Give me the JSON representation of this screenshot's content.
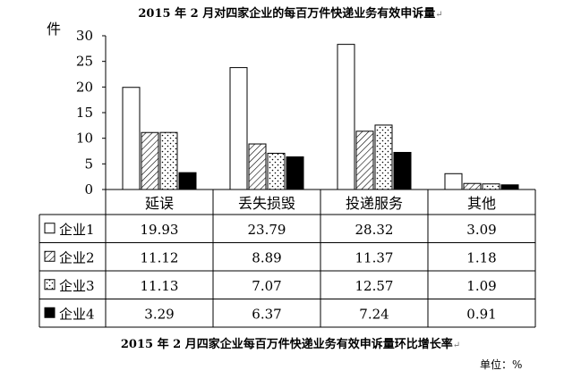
{
  "chart_data": {
    "type": "bar",
    "title": "2015 年 2 月对四家企业的每百万件快递业务有效申诉量",
    "ylabel": "件",
    "ylim": [
      0,
      30
    ],
    "yticks": [
      0,
      5,
      10,
      15,
      20,
      25,
      30
    ],
    "grid": false,
    "categories": [
      "延误",
      "丢失损毁",
      "投递服务",
      "其他"
    ],
    "series": [
      {
        "name": "企业1",
        "fill": "white",
        "values": [
          19.93,
          23.79,
          28.32,
          3.09
        ]
      },
      {
        "name": "企业2",
        "fill": "diagonal-hatch",
        "values": [
          11.12,
          8.89,
          11.37,
          1.18
        ]
      },
      {
        "name": "企业3",
        "fill": "dotted",
        "values": [
          11.13,
          7.07,
          12.57,
          1.09
        ]
      },
      {
        "name": "企业4",
        "fill": "black",
        "values": [
          3.29,
          6.37,
          7.24,
          0.91
        ]
      }
    ],
    "table_values": [
      [
        "19.93",
        "23.79",
        "28.32",
        "3.09"
      ],
      [
        "11.12",
        "8.89",
        "11.37",
        "1.18"
      ],
      [
        "11.13",
        "7.07",
        "12.57",
        "1.09"
      ],
      [
        "3.29",
        "6.37",
        "7.24",
        "0.91"
      ]
    ]
  },
  "subtitle": "2015 年 2 月四家企业每百万件快递业务有效申诉量环比增长率",
  "unit_label": "单位：%",
  "para_mark": "↵",
  "colors": {
    "bar_stroke": "#000000",
    "black_bar": "#000000"
  }
}
